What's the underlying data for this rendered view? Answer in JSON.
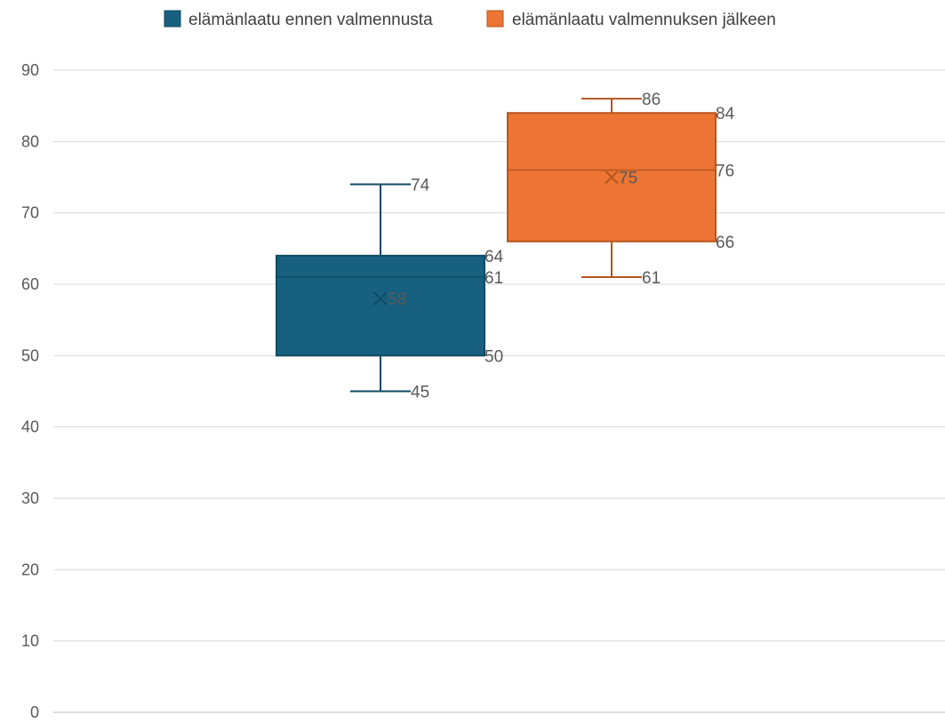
{
  "chart_data": {
    "type": "boxplot",
    "ylim": [
      0,
      90
    ],
    "ytick_step": 10,
    "grid": true,
    "legend_position": "top-center",
    "series": [
      {
        "name": "elämänlaatu ennen valmennusta",
        "color": "#17607F",
        "min": 45,
        "q1": 50,
        "median": 61,
        "q3": 64,
        "max": 74,
        "mean": 58,
        "labels": {
          "min": "45",
          "q1": "50",
          "median": "61",
          "q3": "64",
          "max": "74",
          "mean": "58"
        }
      },
      {
        "name": "elämänlaatu valmennuksen jälkeen",
        "color": "#EC7434",
        "min": 61,
        "q1": 66,
        "median": 76,
        "q3": 84,
        "max": 86,
        "mean": 75,
        "labels": {
          "min": "61",
          "q1": "66",
          "median": "76",
          "q3": "84",
          "max": "86",
          "mean": "75"
        }
      }
    ]
  }
}
